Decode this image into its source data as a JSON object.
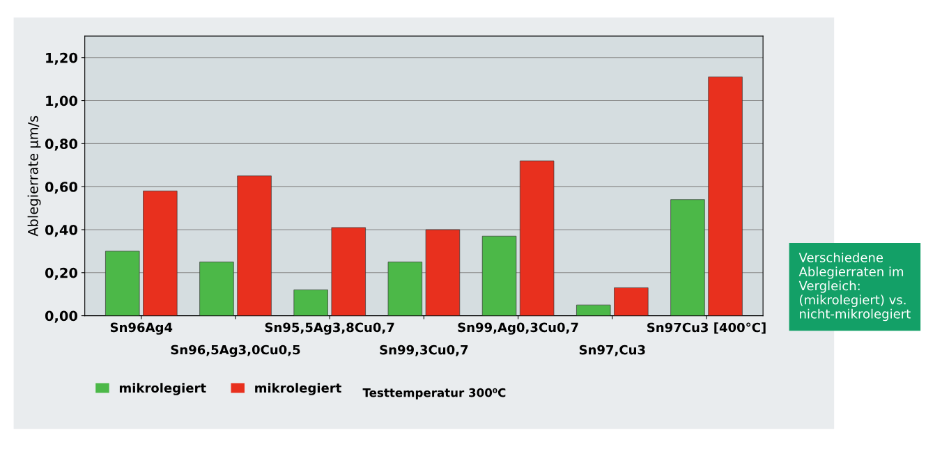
{
  "chart_data": {
    "type": "bar",
    "ylabel": "Ablegierrate µm/s",
    "categories": [
      "Sn96Ag4",
      "Sn96,5Ag3,0Cu0,5",
      "Sn95,5Ag3,8Cu0,7",
      "Sn99,3Cu0,7",
      "Sn99,Ag0,3Cu0,7",
      "Sn97,Cu3",
      "Sn97Cu3 [400°C]"
    ],
    "series": [
      {
        "name": "mikrolegiert",
        "color": "#4cb848",
        "values": [
          0.3,
          0.25,
          0.12,
          0.25,
          0.37,
          0.05,
          0.54
        ]
      },
      {
        "name": "mikrolegiert",
        "color": "#e8301e",
        "values": [
          0.58,
          0.65,
          0.41,
          0.4,
          0.72,
          0.13,
          1.11
        ]
      }
    ],
    "ylim": [
      0,
      1.3
    ],
    "yticks": [
      {
        "value": 0,
        "label": "0,00"
      },
      {
        "value": 0.2,
        "label": "0,20"
      },
      {
        "value": 0.4,
        "label": "0,40"
      },
      {
        "value": 0.6,
        "label": "0,60"
      },
      {
        "value": 0.8,
        "label": "0,80"
      },
      {
        "value": 1.0,
        "label": "1,00"
      },
      {
        "value": 1.2,
        "label": "1,20"
      }
    ],
    "grid": "y",
    "legend": "bottom left",
    "annotations": [
      "Testtemperatur 300⁰C",
      "Verschiedene Ablegierraten im Vergleich: (mikrolegiert) vs. nicht-mikrolegiert"
    ]
  }
}
